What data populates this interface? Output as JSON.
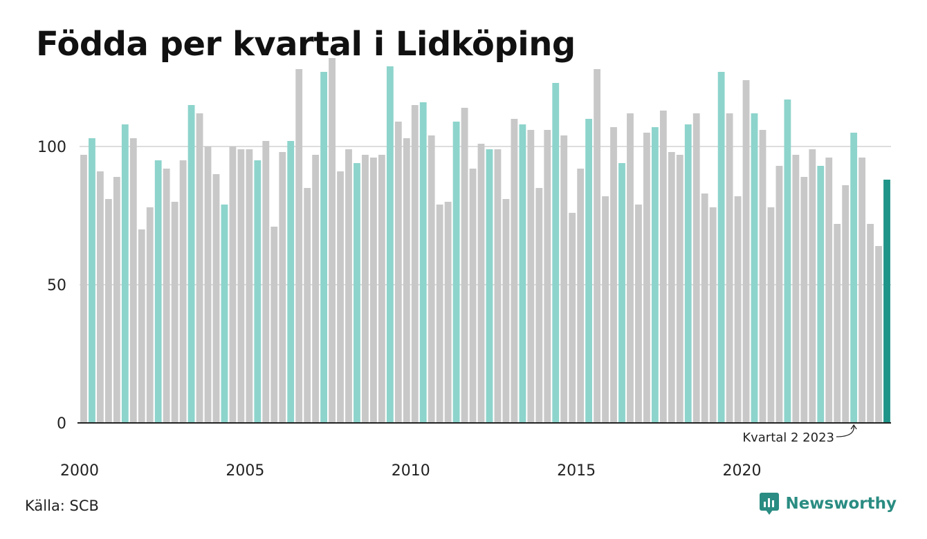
{
  "title": "Födda per kvartal i Lidköping",
  "source": "Källa: SCB",
  "brand": {
    "name": "Newsworthy",
    "icon": "newsworthy-logo-icon"
  },
  "colors": {
    "default_bar": "#c8c8c8",
    "q2_bar": "#8dd4cc",
    "latest_bar": "#1f9488",
    "grid": "#dddddd",
    "axis": "#222222",
    "brand": "#2a8c82"
  },
  "chart_data": {
    "type": "bar",
    "title": "Födda per kvartal i Lidköping",
    "xlabel": "",
    "ylabel": "",
    "ylim": [
      0,
      135
    ],
    "yticks": [
      0,
      50,
      100
    ],
    "grid": true,
    "xtick_labels": [
      "2000",
      "2005",
      "2010",
      "2015",
      "2020"
    ],
    "start": "2000 Q1",
    "end": "2024 Q2",
    "highlight": "Q2 bars in teal; latest quarter in dark teal",
    "annotation": "Kvartal 2 2023",
    "values": [
      97,
      103,
      91,
      81,
      89,
      108,
      103,
      70,
      78,
      95,
      92,
      80,
      95,
      115,
      112,
      100,
      90,
      79,
      100,
      99,
      99,
      95,
      102,
      71,
      98,
      102,
      128,
      85,
      97,
      127,
      132,
      91,
      99,
      94,
      97,
      96,
      97,
      129,
      109,
      103,
      115,
      116,
      104,
      79,
      80,
      109,
      114,
      92,
      101,
      99,
      99,
      81,
      110,
      108,
      106,
      85,
      106,
      123,
      104,
      76,
      92,
      110,
      128,
      82,
      107,
      94,
      112,
      79,
      105,
      107,
      113,
      98,
      97,
      108,
      112,
      83,
      78,
      127,
      112,
      82,
      124,
      112,
      106,
      78,
      93,
      117,
      97,
      89,
      99,
      93,
      96,
      72,
      86,
      105,
      96,
      72,
      64,
      88
    ]
  }
}
